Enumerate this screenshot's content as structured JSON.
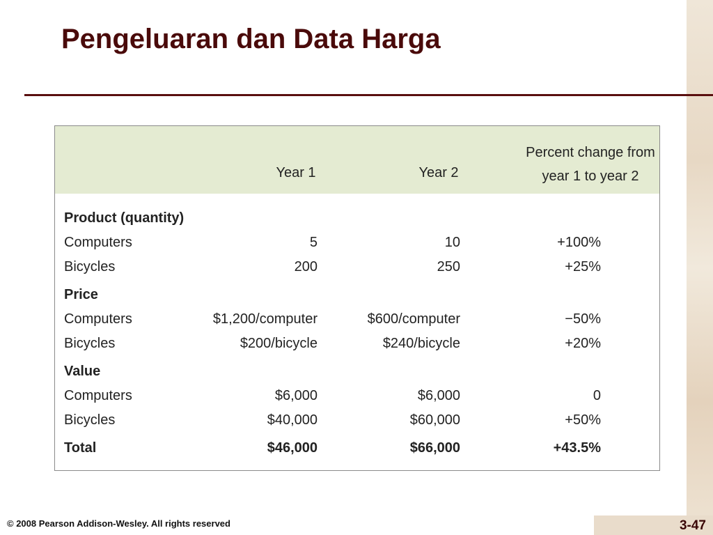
{
  "title": "Pengeluaran dan Data Harga",
  "table": {
    "header": [
      "Year 1",
      "Year 2",
      "Percent change from year 1 to year 2"
    ],
    "sections": [
      {
        "heading": "Product (quantity)",
        "rows": [
          [
            "Computers",
            "5",
            "10",
            "+100%"
          ],
          [
            "Bicycles",
            "200",
            "250",
            "+25%"
          ]
        ]
      },
      {
        "heading": "Price",
        "rows": [
          [
            "Computers",
            "$1,200/computer",
            "$600/computer",
            "−50%"
          ],
          [
            "Bicycles",
            "$200/bicycle",
            "$240/bicycle",
            "+20%"
          ]
        ]
      },
      {
        "heading": "Value",
        "rows": [
          [
            "Computers",
            "$6,000",
            "$6,000",
            "0"
          ],
          [
            "Bicycles",
            "$40,000",
            "$60,000",
            "+50%"
          ]
        ]
      }
    ],
    "total": [
      "Total",
      "$46,000",
      "$66,000",
      "+43.5%"
    ]
  },
  "footer": "© 2008 Pearson Addison-Wesley. All rights reserved",
  "page_number": "3-47"
}
